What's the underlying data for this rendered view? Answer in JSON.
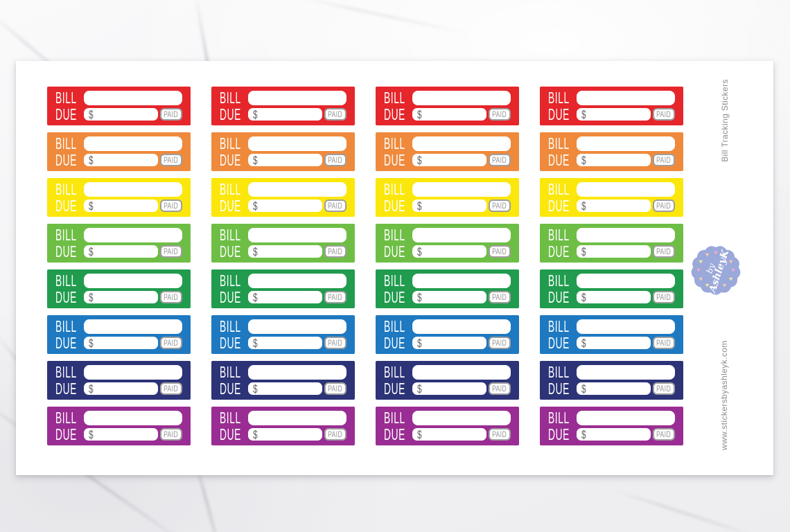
{
  "product": {
    "side_title": "Bill Tracking Stickers",
    "side_website": "www.stickersbyashleyk.com",
    "side_text_color": "#8c8c8c"
  },
  "sticker": {
    "line1": "BILL",
    "line2": "DUE",
    "currency": "$",
    "paid": "PAID",
    "text_color": "#ffffff",
    "field_color": "#ffffff",
    "paid_color": "#999999",
    "dollar_color": "#626262"
  },
  "grid": {
    "columns": 4,
    "rows": [
      {
        "color_name": "red",
        "color": "#e5262b"
      },
      {
        "color_name": "orange",
        "color": "#ef8a3c"
      },
      {
        "color_name": "yellow",
        "color": "#fbe70c"
      },
      {
        "color_name": "light-green",
        "color": "#6ebe46"
      },
      {
        "color_name": "green",
        "color": "#219c4e"
      },
      {
        "color_name": "blue",
        "color": "#1e79c1"
      },
      {
        "color_name": "navy",
        "color": "#2c3377"
      },
      {
        "color_name": "purple",
        "color": "#9a2d93"
      }
    ]
  },
  "badge": {
    "line1": "by",
    "line2": "AshleyK",
    "bg_color": "#9aa8da",
    "text_color": "#ffffff",
    "heart_colors": [
      "#f4aec5",
      "#f8e7a2",
      "#f6c9ad"
    ]
  }
}
